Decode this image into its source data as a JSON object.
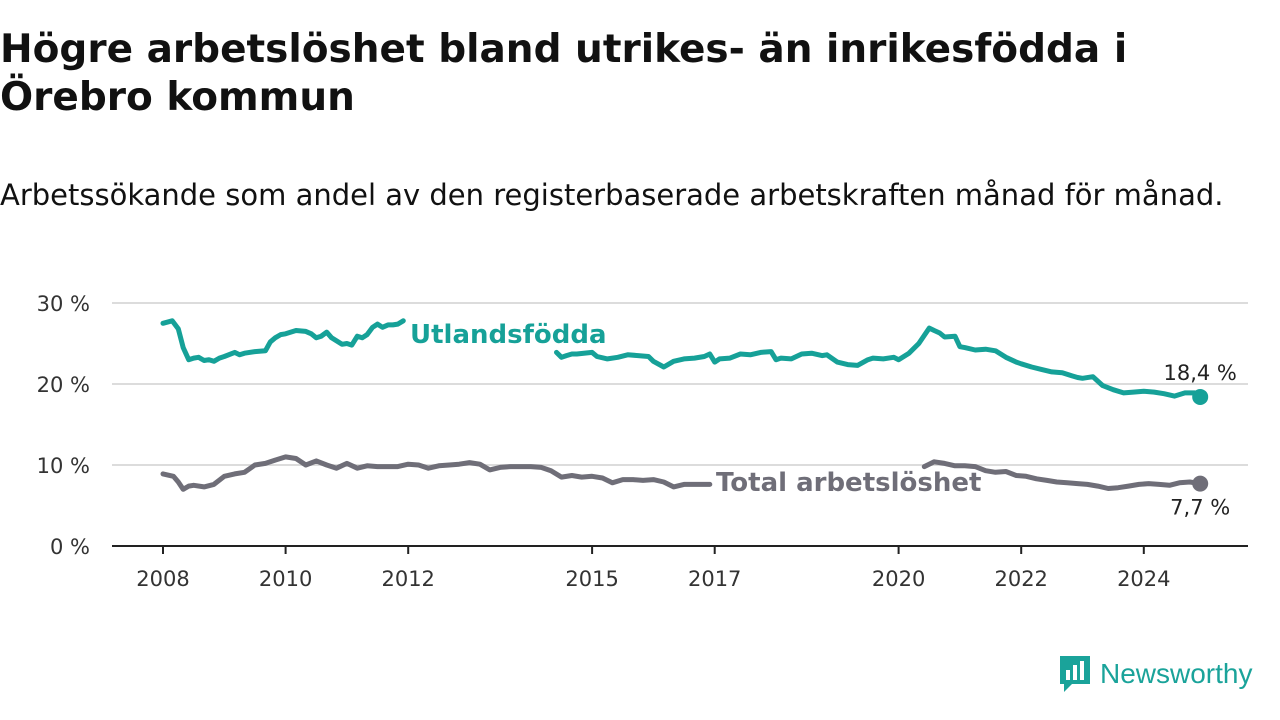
{
  "title": "Högre arbetslöshet bland utrikes- än inrikesfödda i Örebro kommun",
  "subtitle": "Arbetssökande som andel av den registerbaserade arbetskraften månad för månad.",
  "brand": {
    "name": "Newsworthy",
    "icon": "newsworthy-logo-icon",
    "color": "#1aa39a"
  },
  "chart_data": {
    "type": "line",
    "xlabel": "",
    "ylabel": "",
    "ylim": [
      0,
      30
    ],
    "yticks": [
      0,
      10,
      20,
      30
    ],
    "ytick_labels": [
      "0 %",
      "10 %",
      "20 %",
      "30 %"
    ],
    "xticks": [
      2008,
      2010,
      2012,
      2015,
      2017,
      2020,
      2022,
      2024
    ],
    "xtick_labels": [
      "2008",
      "2010",
      "2012",
      "2015",
      "2017",
      "2020",
      "2022",
      "2024"
    ],
    "grid": "horizontal",
    "legend": "none",
    "series": [
      {
        "name": "Utlandsfödda",
        "color": "#16a198",
        "end_label": "18,4 %",
        "segments": [
          {
            "x": [
              2008.0,
              2008.15,
              2008.25,
              2008.33,
              2008.42,
              2008.5,
              2008.58,
              2008.67,
              2008.75,
              2008.83,
              2008.92,
              2009.0,
              2009.17,
              2009.25,
              2009.33,
              2009.5,
              2009.67,
              2009.75,
              2009.83,
              2009.92,
              2010.0,
              2010.17,
              2010.33,
              2010.42,
              2010.5,
              2010.58,
              2010.67,
              2010.75,
              2010.92,
              2011.0,
              2011.08,
              2011.17,
              2011.25,
              2011.33,
              2011.42,
              2011.5,
              2011.58,
              2011.67,
              2011.75,
              2011.83,
              2011.92
            ],
            "y": [
              27.5,
              27.8,
              26.8,
              24.5,
              23.0,
              23.2,
              23.3,
              22.9,
              23.0,
              22.8,
              23.2,
              23.4,
              23.9,
              23.6,
              23.8,
              24.0,
              24.1,
              25.2,
              25.7,
              26.1,
              26.2,
              26.6,
              26.5,
              26.2,
              25.7,
              25.9,
              26.4,
              25.7,
              24.9,
              25.0,
              24.8,
              25.9,
              25.7,
              26.1,
              27.0,
              27.4,
              27.0,
              27.3,
              27.3,
              27.4,
              27.8
            ]
          },
          {
            "x": [
              2014.42,
              2014.5,
              2014.58,
              2014.67,
              2014.75,
              2015.0,
              2015.08,
              2015.25,
              2015.42,
              2015.58,
              2015.75,
              2015.92,
              2016.0,
              2016.17,
              2016.33,
              2016.5,
              2016.67,
              2016.83,
              2016.92,
              2017.0,
              2017.08,
              2017.25,
              2017.42,
              2017.58,
              2017.75,
              2017.92,
              2018.0,
              2018.08,
              2018.25,
              2018.42,
              2018.58,
              2018.75,
              2018.83,
              2019.0,
              2019.17,
              2019.33,
              2019.5,
              2019.58,
              2019.75,
              2019.92,
              2020.0,
              2020.17,
              2020.33,
              2020.42,
              2020.5,
              2020.58,
              2020.67,
              2020.75,
              2020.92,
              2021.0,
              2021.08,
              2021.25,
              2021.42,
              2021.58,
              2021.75,
              2021.92,
              2022.0,
              2022.17,
              2022.33,
              2022.5,
              2022.67,
              2022.83,
              2022.92,
              2023.0,
              2023.17,
              2023.33,
              2023.5,
              2023.67,
              2023.83,
              2024.0,
              2024.17,
              2024.33,
              2024.5,
              2024.67,
              2024.83,
              2024.92
            ],
            "y": [
              23.9,
              23.3,
              23.5,
              23.7,
              23.7,
              23.9,
              23.4,
              23.1,
              23.3,
              23.6,
              23.5,
              23.4,
              22.8,
              22.1,
              22.8,
              23.1,
              23.2,
              23.4,
              23.7,
              22.7,
              23.1,
              23.2,
              23.7,
              23.6,
              23.9,
              24.0,
              23.0,
              23.2,
              23.1,
              23.7,
              23.8,
              23.5,
              23.6,
              22.7,
              22.4,
              22.3,
              23.0,
              23.2,
              23.1,
              23.3,
              23.0,
              23.8,
              25.0,
              26.0,
              26.9,
              26.6,
              26.3,
              25.8,
              25.9,
              24.6,
              24.5,
              24.2,
              24.3,
              24.1,
              23.3,
              22.7,
              22.5,
              22.1,
              21.8,
              21.5,
              21.4,
              21.0,
              20.8,
              20.7,
              20.9,
              19.8,
              19.3,
              18.9,
              19.0,
              19.1,
              19.0,
              18.8,
              18.5,
              18.9,
              18.9,
              18.4
            ]
          }
        ]
      },
      {
        "name": "Total arbetslöshet",
        "color": "#6f6e78",
        "end_label": "7,7 %",
        "segments": [
          {
            "x": [
              2008.0,
              2008.17,
              2008.25,
              2008.33,
              2008.42,
              2008.5,
              2008.67,
              2008.83,
              2009.0,
              2009.17,
              2009.33,
              2009.5,
              2009.67,
              2009.83,
              2010.0,
              2010.17,
              2010.33,
              2010.5,
              2010.67,
              2010.83,
              2011.0,
              2011.17,
              2011.33,
              2011.5,
              2011.67,
              2011.83,
              2012.0,
              2012.17,
              2012.33,
              2012.5,
              2012.67,
              2012.83,
              2013.0,
              2013.17,
              2013.33,
              2013.5,
              2013.67,
              2013.83,
              2014.0,
              2014.17,
              2014.33,
              2014.5,
              2014.67,
              2014.83,
              2015.0,
              2015.17,
              2015.33,
              2015.5,
              2015.67,
              2015.83,
              2016.0,
              2016.17,
              2016.33,
              2016.5,
              2016.67,
              2016.92
            ],
            "y": [
              8.9,
              8.6,
              7.9,
              7.0,
              7.4,
              7.5,
              7.3,
              7.6,
              8.6,
              8.9,
              9.1,
              10.0,
              10.2,
              10.6,
              11.0,
              10.8,
              10.0,
              10.5,
              10.0,
              9.6,
              10.2,
              9.6,
              9.9,
              9.8,
              9.8,
              9.8,
              10.1,
              10.0,
              9.6,
              9.9,
              10.0,
              10.1,
              10.3,
              10.1,
              9.4,
              9.7,
              9.8,
              9.8,
              9.8,
              9.7,
              9.3,
              8.5,
              8.7,
              8.5,
              8.6,
              8.4,
              7.8,
              8.2,
              8.2,
              8.1,
              8.2,
              7.9,
              7.3,
              7.6,
              7.6,
              7.6
            ]
          },
          {
            "x": [
              2020.42,
              2020.58,
              2020.75,
              2020.92,
              2021.08,
              2021.25,
              2021.42,
              2021.58,
              2021.75,
              2021.92,
              2022.08,
              2022.25,
              2022.42,
              2022.58,
              2022.75,
              2022.92,
              2023.08,
              2023.25,
              2023.42,
              2023.58,
              2023.75,
              2023.92,
              2024.08,
              2024.25,
              2024.42,
              2024.58,
              2024.75,
              2024.92
            ],
            "y": [
              9.8,
              10.4,
              10.2,
              9.9,
              9.9,
              9.8,
              9.3,
              9.1,
              9.2,
              8.7,
              8.6,
              8.3,
              8.1,
              7.9,
              7.8,
              7.7,
              7.6,
              7.4,
              7.1,
              7.2,
              7.4,
              7.6,
              7.7,
              7.6,
              7.5,
              7.8,
              7.9,
              7.7
            ]
          }
        ]
      }
    ],
    "annotations": [
      {
        "text": "Utlandsfödda",
        "series": "Utlandsfödda"
      },
      {
        "text": "Total arbetslöshet",
        "series": "Total arbetslöshet"
      }
    ]
  }
}
